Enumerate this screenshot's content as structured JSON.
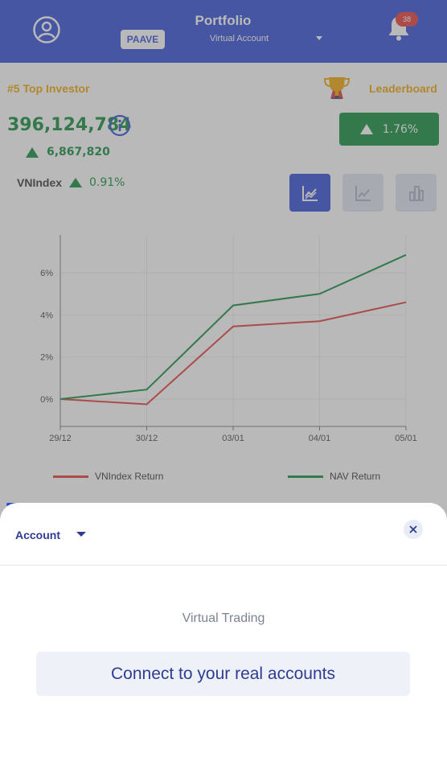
{
  "header": {
    "title": "Portfolio",
    "account_selector": "Virtual Account",
    "brand_tag": "PAAVE",
    "notification_count": "38"
  },
  "summary": {
    "rank_text": "#5 Top Investor",
    "leaderboard_label": "Leaderboard",
    "nav_value": "396,124,784",
    "nav_change": "6,867,820",
    "nav_change_pct": "1.76%",
    "index_name": "VNIndex",
    "index_change_pct": "0.91%"
  },
  "colors": {
    "brand": "#2e4bd6",
    "positive": "#0b8a3a",
    "gold": "#f2a400",
    "vnindex_line": "#e53935",
    "nav_line": "#0b8a3a"
  },
  "chart_data": {
    "type": "line",
    "x": [
      "29/12",
      "30/12",
      "03/01",
      "04/01",
      "05/01"
    ],
    "y_ticks": [
      "0%",
      "2%",
      "4%",
      "6%"
    ],
    "ylim": [
      -1.3,
      7.8
    ],
    "grid": true,
    "legend_position": "bottom",
    "series": [
      {
        "name": "VNIndex Return",
        "values": [
          0,
          -0.25,
          3.45,
          3.7,
          4.6
        ]
      },
      {
        "name": "NAV Return",
        "values": [
          0,
          0.45,
          4.45,
          5.0,
          6.85
        ]
      }
    ]
  },
  "sheet": {
    "title": "Account",
    "section_label": "Virtual Trading",
    "connect_label": "Connect to your real accounts"
  }
}
